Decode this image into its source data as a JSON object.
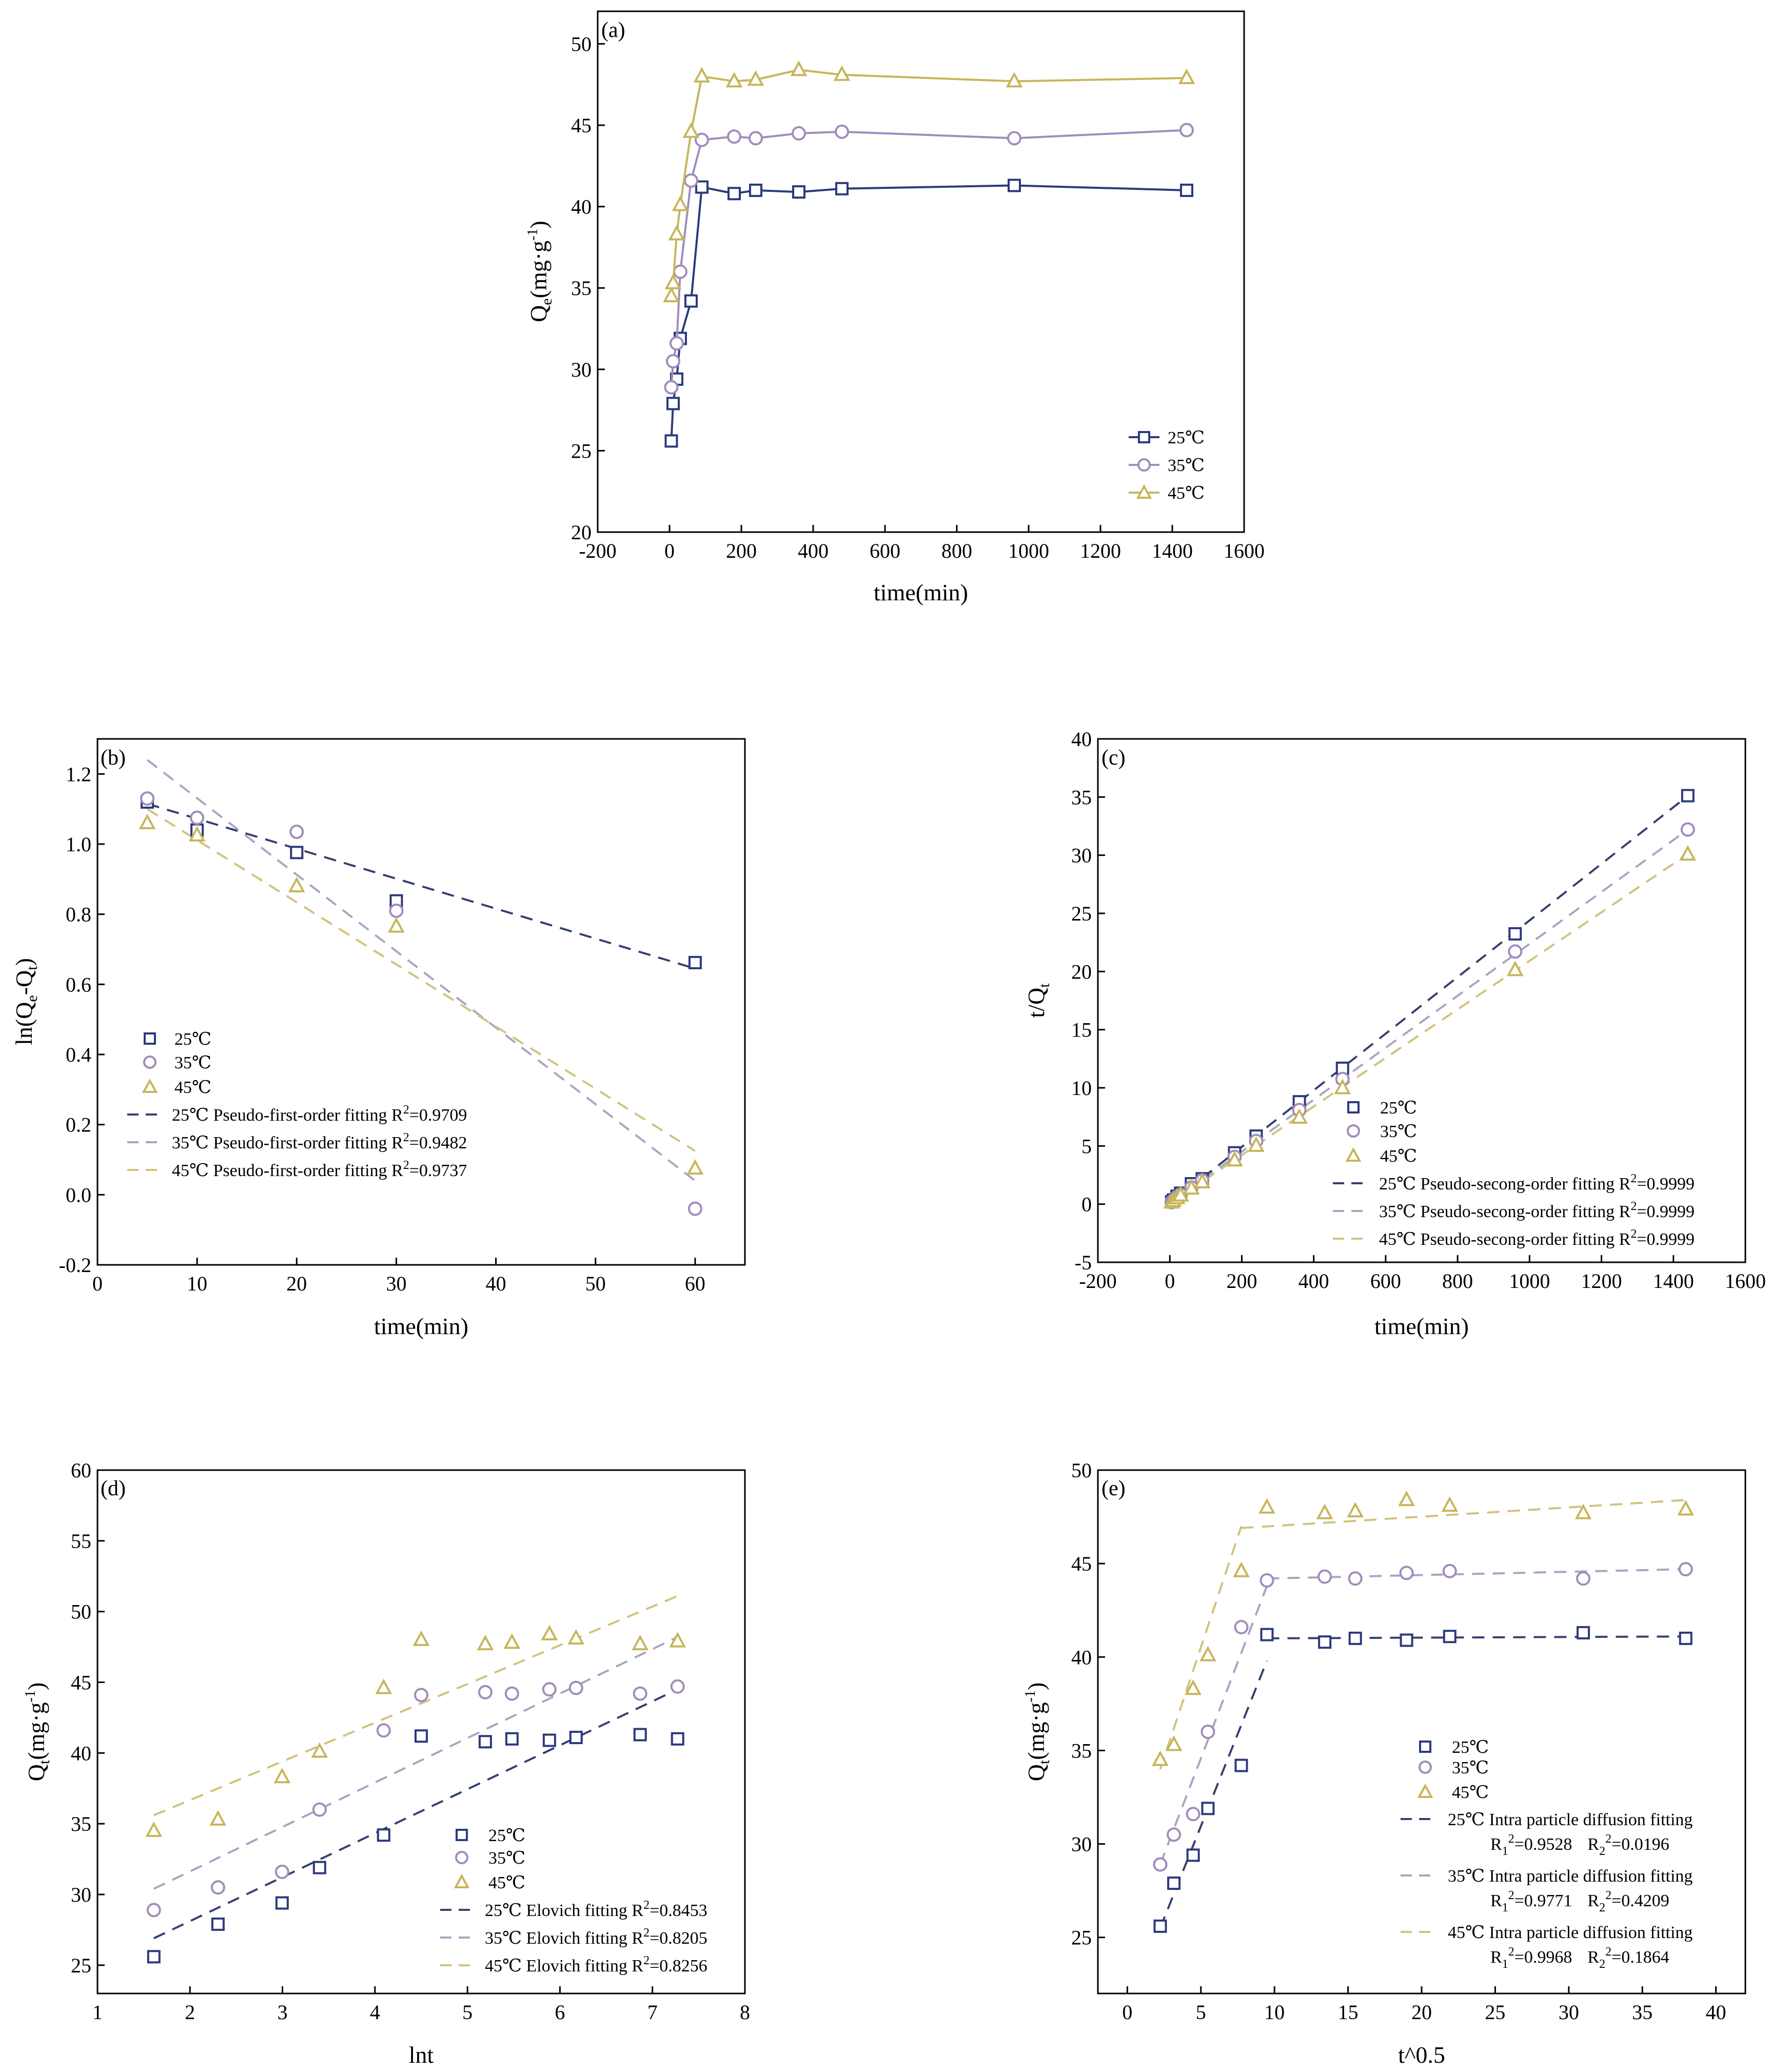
{
  "colors": {
    "c25": "#2b3a7c",
    "c35": "#a08cbc",
    "c45": "#c8b55a",
    "c25_fit": "#33416f",
    "c35_fit": "#a9a4c2",
    "c45_fit": "#d2c27d"
  },
  "chart_data": [
    {
      "id": "a",
      "panel_label": "(a)",
      "type": "line",
      "xlabel": "time(min)",
      "ylabel_main": "Q",
      "ylabel_sub": "e",
      "ylabel_rest": "(mg·g",
      "ylabel_sup": "-1",
      "ylabel_end": ")",
      "xlim": [
        -200,
        1600
      ],
      "ylim": [
        20,
        52
      ],
      "xticks": [
        "-200",
        "0",
        "200",
        "400",
        "600",
        "800",
        "1000",
        "1200",
        "1400",
        "1600"
      ],
      "yticks": [
        "20",
        "25",
        "30",
        "35",
        "40",
        "45",
        "50"
      ],
      "legend_position": "bottom-right",
      "series": [
        {
          "name": "25℃",
          "marker": "square",
          "color_key": "c25",
          "x": [
            5,
            10,
            20,
            30,
            60,
            90,
            180,
            240,
            360,
            480,
            960,
            1440
          ],
          "y": [
            25.6,
            27.9,
            29.4,
            31.9,
            34.2,
            41.2,
            40.8,
            41.0,
            40.9,
            41.1,
            41.3,
            41.0
          ]
        },
        {
          "name": "35℃",
          "marker": "circle",
          "color_key": "c35",
          "x": [
            5,
            10,
            20,
            30,
            60,
            90,
            180,
            240,
            360,
            480,
            960,
            1440
          ],
          "y": [
            28.9,
            30.5,
            31.6,
            36.0,
            41.6,
            44.1,
            44.3,
            44.2,
            44.5,
            44.6,
            44.2,
            44.7
          ]
        },
        {
          "name": "45℃",
          "marker": "triangle",
          "color_key": "c45",
          "x": [
            5,
            10,
            20,
            30,
            60,
            90,
            180,
            240,
            360,
            480,
            960,
            1440
          ],
          "y": [
            34.5,
            35.3,
            38.3,
            40.1,
            44.6,
            48.0,
            47.7,
            47.8,
            48.4,
            48.1,
            47.7,
            47.9
          ]
        }
      ],
      "fits": []
    },
    {
      "id": "b",
      "panel_label": "(b)",
      "type": "scatter",
      "xlabel": "time(min)",
      "ylabel_main": "ln(Q",
      "ylabel_sub": "e",
      "ylabel_rest": "-Q",
      "ylabel_sub2": "t",
      "ylabel_end": ")",
      "xlim": [
        0,
        65
      ],
      "ylim": [
        -0.2,
        1.3
      ],
      "xticks": [
        "0",
        "10",
        "20",
        "30",
        "40",
        "50",
        "60"
      ],
      "yticks": [
        "-0.2",
        "0.0",
        "0.2",
        "0.4",
        "0.6",
        "0.8",
        "1.0",
        "1.2"
      ],
      "legend_position": "lower-left",
      "series": [
        {
          "name": "25℃",
          "marker": "square",
          "color_key": "c25",
          "x": [
            5,
            10,
            20,
            30,
            60
          ],
          "y": [
            1.12,
            1.04,
            0.976,
            0.838,
            0.662
          ]
        },
        {
          "name": "35℃",
          "marker": "circle",
          "color_key": "c35",
          "x": [
            5,
            10,
            20,
            30,
            60
          ],
          "y": [
            1.13,
            1.075,
            1.035,
            0.81,
            -0.04
          ]
        },
        {
          "name": "45℃",
          "marker": "triangle",
          "color_key": "c45",
          "x": [
            5,
            10,
            20,
            30,
            60
          ],
          "y": [
            1.06,
            1.025,
            0.88,
            0.765,
            0.075
          ]
        }
      ],
      "fits": [
        {
          "label": "25℃ Pseudo-first-order fitting R",
          "r2": "=0.9709",
          "color_key": "c25_fit",
          "x": [
            5,
            60
          ],
          "y": [
            1.115,
            0.645
          ]
        },
        {
          "label": "35℃ Pseudo-first-order fitting R",
          "r2": "=0.9482",
          "color_key": "c35_fit",
          "x": [
            5,
            60
          ],
          "y": [
            1.24,
            0.04
          ]
        },
        {
          "label": "45℃ Pseudo-first-order fitting R",
          "r2": "=0.9737",
          "color_key": "c45_fit",
          "x": [
            5,
            60
          ],
          "y": [
            1.1,
            0.125
          ]
        }
      ]
    },
    {
      "id": "c",
      "panel_label": "(c)",
      "type": "scatter",
      "xlabel": "time(min)",
      "ylabel_main": "t/Q",
      "ylabel_sub": "t",
      "xlim": [
        -200,
        1600
      ],
      "ylim": [
        -5,
        40
      ],
      "xticks": [
        "-200",
        "0",
        "200",
        "400",
        "600",
        "800",
        "1000",
        "1200",
        "1400",
        "1600"
      ],
      "yticks": [
        "-5",
        "0",
        "5",
        "10",
        "15",
        "20",
        "25",
        "30",
        "35",
        "40"
      ],
      "legend_position": "lower-right",
      "series": [
        {
          "name": "25℃",
          "marker": "square",
          "color_key": "c25",
          "x": [
            5,
            10,
            20,
            30,
            60,
            90,
            180,
            240,
            360,
            480,
            960,
            1440
          ],
          "y": [
            0.2,
            0.36,
            0.68,
            0.94,
            1.75,
            2.18,
            4.41,
            5.85,
            8.8,
            11.68,
            23.24,
            35.12
          ]
        },
        {
          "name": "35℃",
          "marker": "circle",
          "color_key": "c35",
          "x": [
            5,
            10,
            20,
            30,
            60,
            90,
            180,
            240,
            360,
            480,
            960,
            1440
          ],
          "y": [
            0.17,
            0.33,
            0.63,
            0.83,
            1.44,
            2.04,
            4.06,
            5.43,
            8.09,
            10.76,
            21.72,
            32.21
          ]
        },
        {
          "name": "45℃",
          "marker": "triangle",
          "color_key": "c45",
          "x": [
            5,
            10,
            20,
            30,
            60,
            90,
            180,
            240,
            360,
            480,
            960,
            1440
          ],
          "y": [
            0.15,
            0.28,
            0.52,
            0.75,
            1.35,
            1.88,
            3.77,
            5.02,
            7.44,
            9.98,
            20.13,
            30.06
          ]
        }
      ],
      "fits": [
        {
          "label": "25℃ Pseudo-secong-order fitting R",
          "r2": "=0.9999",
          "color_key": "c25_fit",
          "x": [
            0,
            1440
          ],
          "y": [
            0.05,
            35.1
          ]
        },
        {
          "label": "35℃ Pseudo-secong-order fitting R",
          "r2": "=0.9999",
          "color_key": "c35_fit",
          "x": [
            0,
            1440
          ],
          "y": [
            0.05,
            32.2
          ]
        },
        {
          "label": "45℃ Pseudo-secong-order fitting R",
          "r2": "=0.9999",
          "color_key": "c45_fit",
          "x": [
            0,
            1440
          ],
          "y": [
            0.05,
            30.1
          ]
        }
      ]
    },
    {
      "id": "d",
      "panel_label": "(d)",
      "type": "scatter",
      "xlabel": "lnt",
      "ylabel_main": "Q",
      "ylabel_sub": "t",
      "ylabel_rest": "(mg·g",
      "ylabel_sup": "-1",
      "ylabel_end": ")",
      "xlim": [
        1,
        8
      ],
      "ylim": [
        23,
        60
      ],
      "xticks": [
        "1",
        "2",
        "3",
        "4",
        "5",
        "6",
        "7",
        "8"
      ],
      "yticks": [
        "25",
        "30",
        "35",
        "40",
        "45",
        "50",
        "55",
        "60"
      ],
      "legend_position": "lower-right",
      "series": [
        {
          "name": "25℃",
          "marker": "square",
          "color_key": "c25",
          "x": [
            1.609,
            2.303,
            2.996,
            3.401,
            4.094,
            4.5,
            5.193,
            5.481,
            5.886,
            6.174,
            6.867,
            7.272
          ],
          "y": [
            25.6,
            27.9,
            29.4,
            31.9,
            34.2,
            41.2,
            40.8,
            41.0,
            40.9,
            41.1,
            41.3,
            41.0
          ]
        },
        {
          "name": "35℃",
          "marker": "circle",
          "color_key": "c35",
          "x": [
            1.609,
            2.303,
            2.996,
            3.401,
            4.094,
            4.5,
            5.193,
            5.481,
            5.886,
            6.174,
            6.867,
            7.272
          ],
          "y": [
            28.9,
            30.5,
            31.6,
            36.0,
            41.6,
            44.1,
            44.3,
            44.2,
            44.5,
            44.6,
            44.2,
            44.7
          ]
        },
        {
          "name": "45℃",
          "marker": "triangle",
          "color_key": "c45",
          "x": [
            1.609,
            2.303,
            2.996,
            3.401,
            4.094,
            4.5,
            5.193,
            5.481,
            5.886,
            6.174,
            6.867,
            7.272
          ],
          "y": [
            34.5,
            35.3,
            38.3,
            40.1,
            44.6,
            48.0,
            47.7,
            47.8,
            48.4,
            48.1,
            47.7,
            47.9
          ]
        }
      ],
      "fits": [
        {
          "label": "25℃ Elovich fitting R",
          "r2": "=0.8453",
          "color_key": "c25_fit",
          "x": [
            1.609,
            7.272
          ],
          "y": [
            26.9,
            44.5
          ]
        },
        {
          "label": "35℃ Elovich fitting R",
          "r2": "=0.8205",
          "color_key": "c35_fit",
          "x": [
            1.609,
            7.272
          ],
          "y": [
            30.4,
            48.2
          ]
        },
        {
          "label": "45℃ Elovich fitting R",
          "r2": "=0.8256",
          "color_key": "c45_fit",
          "x": [
            1.609,
            7.272
          ],
          "y": [
            35.6,
            51.1
          ]
        }
      ]
    },
    {
      "id": "e",
      "panel_label": "(e)",
      "type": "scatter",
      "xlabel": "t^0.5",
      "ylabel_main": "Q",
      "ylabel_sub": "t",
      "ylabel_rest": "(mg·g",
      "ylabel_sup": "-1",
      "ylabel_end": ")",
      "xlim": [
        -2,
        42
      ],
      "ylim": [
        22,
        50
      ],
      "xticks": [
        "0",
        "5",
        "10",
        "15",
        "20",
        "25",
        "30",
        "35",
        "40"
      ],
      "yticks": [
        "25",
        "30",
        "35",
        "40",
        "45",
        "50"
      ],
      "legend_position": "lower-right",
      "series": [
        {
          "name": "25℃",
          "marker": "square",
          "color_key": "c25",
          "x": [
            2.236,
            3.162,
            4.472,
            5.477,
            7.746,
            9.487,
            13.416,
            15.492,
            18.974,
            21.909,
            30.984,
            37.947
          ],
          "y": [
            25.6,
            27.9,
            29.4,
            31.9,
            34.2,
            41.2,
            40.8,
            41.0,
            40.9,
            41.1,
            41.3,
            41.0
          ]
        },
        {
          "name": "35℃",
          "marker": "circle",
          "color_key": "c35",
          "x": [
            2.236,
            3.162,
            4.472,
            5.477,
            7.746,
            9.487,
            13.416,
            15.492,
            18.974,
            21.909,
            30.984,
            37.947
          ],
          "y": [
            28.9,
            30.5,
            31.6,
            36.0,
            41.6,
            44.1,
            44.3,
            44.2,
            44.5,
            44.6,
            44.2,
            44.7
          ]
        },
        {
          "name": "45℃",
          "marker": "triangle",
          "color_key": "c45",
          "x": [
            2.236,
            3.162,
            4.472,
            5.477,
            7.746,
            9.487,
            13.416,
            15.492,
            18.974,
            21.909,
            30.984,
            37.947
          ],
          "y": [
            34.5,
            35.3,
            38.3,
            40.1,
            44.6,
            48.0,
            47.7,
            47.8,
            48.4,
            48.1,
            47.7,
            47.9
          ]
        }
      ],
      "fits": [
        {
          "label": "25℃ Intra particle diffusion fitting",
          "r1": "=0.9528",
          "r2v": "=0.0196",
          "color_key": "c25_fit",
          "segments": [
            {
              "x": [
                2.236,
                9.487
              ],
              "y": [
                25.5,
                39.8
              ]
            },
            {
              "x": [
                9.487,
                37.947
              ],
              "y": [
                41.0,
                41.1
              ]
            }
          ]
        },
        {
          "label": "35℃ Intra particle diffusion fitting",
          "r1": "=0.9771",
          "r2v": "=0.4209",
          "color_key": "c35_fit",
          "segments": [
            {
              "x": [
                2.236,
                9.487
              ],
              "y": [
                28.9,
                43.8
              ]
            },
            {
              "x": [
                9.487,
                37.947
              ],
              "y": [
                44.2,
                44.7
              ]
            }
          ]
        },
        {
          "label": "45℃ Intra particle diffusion fitting",
          "r1": "=0.9968",
          "r2v": "=0.1864",
          "color_key": "c45_fit",
          "segments": [
            {
              "x": [
                2.236,
                7.746
              ],
              "y": [
                34.0,
                47.0
              ]
            },
            {
              "x": [
                7.746,
                37.947
              ],
              "y": [
                46.9,
                48.4
              ]
            }
          ]
        }
      ]
    }
  ]
}
